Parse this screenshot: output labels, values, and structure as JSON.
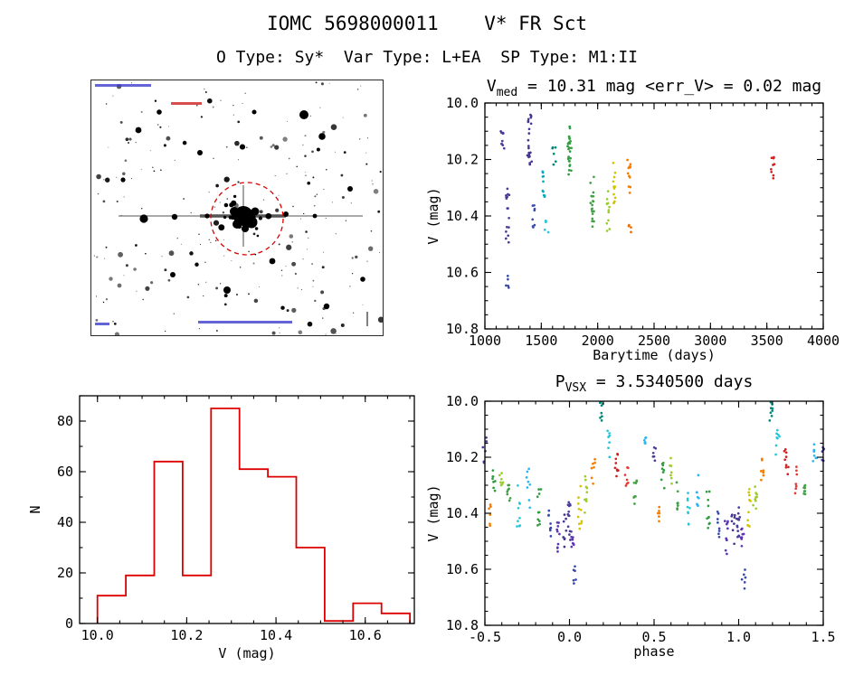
{
  "page": {
    "title": "IOMC 5698000011    V* FR Sct",
    "subtitle": "O Type: Sy*  Var Type: L+EA  SP Type: M1:II"
  },
  "starfield": {
    "marker_color": "#dd0000",
    "marker_shape": "dashed-circle"
  },
  "chart_data": [
    {
      "id": "lightcurve",
      "type": "scatter",
      "seed": 13,
      "title": {
        "main": "V",
        "sub": "med",
        "rest": " = 10.31 mag <err_V> = 0.02 mag"
      },
      "xlabel": "Barytime (days)",
      "ylabel": "V (mag)",
      "xlim": [
        1000,
        4000
      ],
      "ylim": [
        10.0,
        10.8
      ],
      "xticks": [
        1000,
        1500,
        2000,
        2500,
        3000,
        3500,
        4000
      ],
      "xtick_labels": [
        "1000",
        "1500",
        "2000",
        "2500",
        "3000",
        "3500",
        "4000"
      ],
      "yticks": [
        10.0,
        10.2,
        10.4,
        10.6,
        10.8
      ],
      "ytick_labels": [
        "10.0",
        "10.2",
        "10.4",
        "10.6",
        "10.8"
      ],
      "xminor": 100,
      "yminor": 0.05,
      "clusters": [
        {
          "x": 1160,
          "ymin": 10.1,
          "ymax": 10.18,
          "n": 10,
          "color": "#4a3d99"
        },
        {
          "x": 1200,
          "ymin": 10.3,
          "ymax": 10.5,
          "n": 16,
          "color": "#4a3d99"
        },
        {
          "x": 1205,
          "ymin": 10.6,
          "ymax": 10.66,
          "n": 5,
          "color": "#3949ab"
        },
        {
          "x": 1395,
          "ymin": 10.04,
          "ymax": 10.22,
          "n": 22,
          "color": "#473593"
        },
        {
          "x": 1430,
          "ymin": 10.35,
          "ymax": 10.45,
          "n": 8,
          "color": "#3949ab"
        },
        {
          "x": 1520,
          "ymin": 10.24,
          "ymax": 10.34,
          "n": 10,
          "color": "#00acc1"
        },
        {
          "x": 1545,
          "ymin": 10.4,
          "ymax": 10.46,
          "n": 5,
          "color": "#26c6da"
        },
        {
          "x": 1610,
          "ymin": 10.15,
          "ymax": 10.22,
          "n": 6,
          "color": "#00897b"
        },
        {
          "x": 1750,
          "ymin": 10.08,
          "ymax": 10.26,
          "n": 24,
          "color": "#2e9e40"
        },
        {
          "x": 1955,
          "ymin": 10.25,
          "ymax": 10.47,
          "n": 20,
          "color": "#43a047"
        },
        {
          "x": 2090,
          "ymin": 10.3,
          "ymax": 10.46,
          "n": 12,
          "color": "#9ccc2e"
        },
        {
          "x": 2150,
          "ymin": 10.2,
          "ymax": 10.36,
          "n": 12,
          "color": "#d4c400"
        },
        {
          "x": 2280,
          "ymin": 10.2,
          "ymax": 10.33,
          "n": 12,
          "color": "#f57c00"
        },
        {
          "x": 2292,
          "ymin": 10.43,
          "ymax": 10.46,
          "n": 4,
          "color": "#ef6c00"
        },
        {
          "x": 3550,
          "ymin": 10.19,
          "ymax": 10.27,
          "n": 9,
          "color": "#cc2222"
        }
      ]
    },
    {
      "id": "histogram",
      "type": "bar",
      "color": "#dd0000",
      "xlabel": "V (mag)",
      "ylabel": "N",
      "xlim": [
        9.96,
        10.71
      ],
      "ylim": [
        90,
        0
      ],
      "xticks": [
        10.0,
        10.2,
        10.4,
        10.6
      ],
      "xtick_labels": [
        "10.0",
        "10.2",
        "10.4",
        "10.6"
      ],
      "yticks": [
        0,
        20,
        40,
        60,
        80
      ],
      "ytick_labels": [
        "0",
        "20",
        "40",
        "60",
        "80"
      ],
      "xminor": 0.05,
      "yminor": 10,
      "bin_start": 10.0,
      "bin_width": 0.0636364,
      "counts": [
        11,
        19,
        64,
        19,
        85,
        61,
        58,
        30,
        1,
        8,
        4
      ]
    },
    {
      "id": "phase",
      "type": "scatter",
      "seed": 29,
      "fold": true,
      "title": {
        "main": "P",
        "sub": "VSX",
        "rest": " = 3.5340500 days"
      },
      "xlabel": "phase",
      "ylabel": "V (mag)",
      "xlim": [
        -0.5,
        1.5
      ],
      "ylim": [
        10.0,
        10.8
      ],
      "xticks": [
        -0.5,
        0.0,
        0.5,
        1.0,
        1.5
      ],
      "xtick_labels": [
        "-0.5",
        "0.0",
        "0.5",
        "1.0",
        "1.5"
      ],
      "yticks": [
        10.0,
        10.2,
        10.4,
        10.6,
        10.8
      ],
      "ytick_labels": [
        "10.0",
        "10.2",
        "10.4",
        "10.6",
        "10.8"
      ],
      "xminor": 0.1,
      "yminor": 0.05,
      "clusters": [
        {
          "x": 0.0,
          "ymin": 10.36,
          "ymax": 10.5,
          "n": 14,
          "color": "#4a3d99"
        },
        {
          "x": 0.02,
          "ymin": 10.44,
          "ymax": 10.52,
          "n": 8,
          "color": "#5e35b1"
        },
        {
          "x": 0.03,
          "ymin": 10.58,
          "ymax": 10.67,
          "n": 6,
          "color": "#3949ab"
        },
        {
          "x": 0.06,
          "ymin": 10.3,
          "ymax": 10.46,
          "n": 10,
          "color": "#d4c400"
        },
        {
          "x": 0.1,
          "ymin": 10.26,
          "ymax": 10.4,
          "n": 9,
          "color": "#9ccc2e"
        },
        {
          "x": 0.14,
          "ymin": 10.2,
          "ymax": 10.31,
          "n": 7,
          "color": "#f57c00"
        },
        {
          "x": 0.19,
          "ymin": 10.0,
          "ymax": 10.07,
          "n": 8,
          "color": "#00897b"
        },
        {
          "x": 0.23,
          "ymin": 10.1,
          "ymax": 10.2,
          "n": 8,
          "color": "#26c6da"
        },
        {
          "x": 0.28,
          "ymin": 10.17,
          "ymax": 10.27,
          "n": 9,
          "color": "#cc2222"
        },
        {
          "x": 0.34,
          "ymin": 10.23,
          "ymax": 10.33,
          "n": 7,
          "color": "#e53935"
        },
        {
          "x": 0.39,
          "ymin": 10.26,
          "ymax": 10.38,
          "n": 8,
          "color": "#43a047"
        },
        {
          "x": 0.45,
          "ymin": 10.12,
          "ymax": 10.22,
          "n": 7,
          "color": "#29b6f6"
        },
        {
          "x": 0.5,
          "ymin": 10.13,
          "ymax": 10.22,
          "n": 6,
          "color": "#4a3d99"
        },
        {
          "x": 0.53,
          "ymin": 10.35,
          "ymax": 10.45,
          "n": 6,
          "color": "#f57c00"
        },
        {
          "x": 0.55,
          "ymin": 10.22,
          "ymax": 10.33,
          "n": 8,
          "color": "#2e9e40"
        },
        {
          "x": 0.6,
          "ymin": 10.19,
          "ymax": 10.3,
          "n": 7,
          "color": "#9ccc2e"
        },
        {
          "x": 0.64,
          "ymin": 10.26,
          "ymax": 10.4,
          "n": 8,
          "color": "#43a047"
        },
        {
          "x": 0.7,
          "ymin": 10.3,
          "ymax": 10.45,
          "n": 9,
          "color": "#26c6da"
        },
        {
          "x": 0.76,
          "ymin": 10.24,
          "ymax": 10.38,
          "n": 8,
          "color": "#29b6f6"
        },
        {
          "x": 0.82,
          "ymin": 10.3,
          "ymax": 10.46,
          "n": 10,
          "color": "#2e9e40"
        },
        {
          "x": 0.88,
          "ymin": 10.36,
          "ymax": 10.5,
          "n": 8,
          "color": "#3949ab"
        },
        {
          "x": 0.93,
          "ymin": 10.4,
          "ymax": 10.55,
          "n": 10,
          "color": "#5e35b1"
        },
        {
          "x": 0.97,
          "ymin": 10.4,
          "ymax": 10.52,
          "n": 8,
          "color": "#473593"
        }
      ]
    }
  ]
}
